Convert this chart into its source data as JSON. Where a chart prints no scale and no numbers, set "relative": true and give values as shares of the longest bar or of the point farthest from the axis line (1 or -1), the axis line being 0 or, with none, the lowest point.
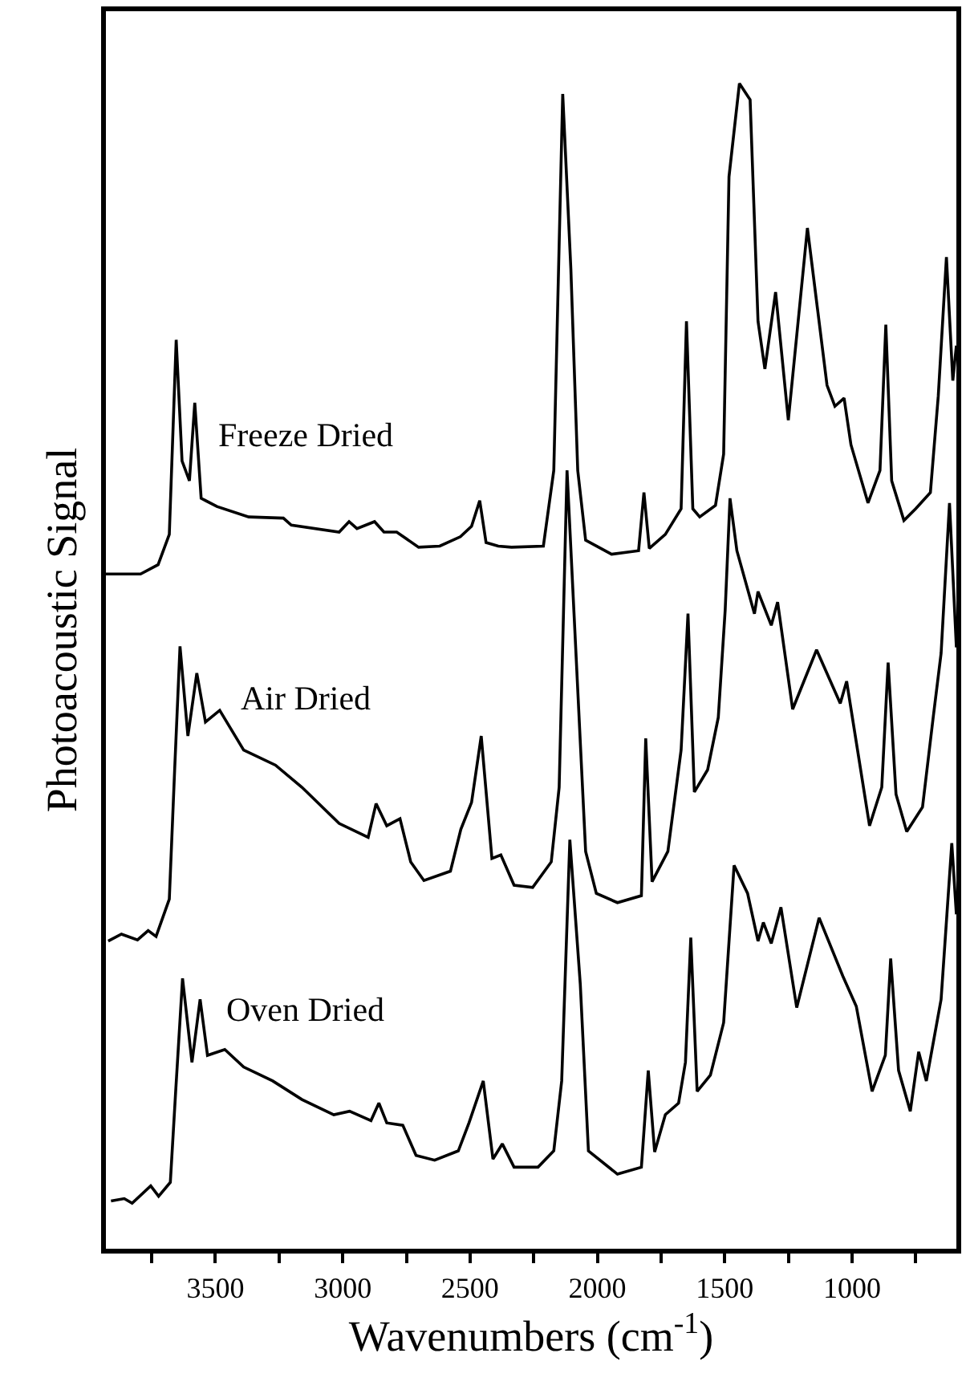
{
  "chart_data": {
    "type": "line",
    "relative": true,
    "xlabel": "Wavenumbers (cm$^{-1}$)",
    "ylabel": "Photoacoustic Signal",
    "xlim": [
      3930,
      590
    ],
    "xticks": [
      {
        "value": 3750,
        "label": null
      },
      3500,
      {
        "value": 3250,
        "label": null
      },
      3000,
      {
        "value": 2750,
        "label": null
      },
      2500,
      {
        "value": 2250,
        "label": null
      },
      2000,
      {
        "value": 1750,
        "label": null
      },
      1500,
      {
        "value": 1250,
        "label": null
      },
      1000,
      {
        "value": 750,
        "label": null
      }
    ],
    "legend": false,
    "marker": "none",
    "line_style": "solid",
    "tick_labels": "x",
    "series": [
      {
        "name": "Freeze Dried",
        "color": "#000000",
        "x": [
          3930,
          3794,
          3725,
          3681,
          3654,
          3631,
          3602,
          3581,
          3556,
          3494,
          3369,
          3233,
          3202,
          3014,
          2975,
          2944,
          2875,
          2838,
          2788,
          2702,
          2619,
          2538,
          2494,
          2462,
          2437,
          2389,
          2337,
          2212,
          2171,
          2136,
          2104,
          2077,
          2046,
          1944,
          1838,
          1817,
          1796,
          1733,
          1671,
          1650,
          1625,
          1598,
          1536,
          1504,
          1483,
          1442,
          1400,
          1369,
          1342,
          1300,
          1250,
          1175,
          1098,
          1067,
          1031,
          1004,
          937,
          890,
          867,
          844,
          796,
          750,
          692,
          661,
          629,
          604,
          590
        ],
        "values": [
          0.579,
          0.579,
          0.587,
          0.613,
          0.78,
          0.676,
          0.659,
          0.726,
          0.644,
          0.637,
          0.628,
          0.627,
          0.621,
          0.615,
          0.624,
          0.618,
          0.624,
          0.615,
          0.615,
          0.602,
          0.603,
          0.611,
          0.62,
          0.642,
          0.606,
          0.603,
          0.602,
          0.603,
          0.668,
          0.991,
          0.841,
          0.668,
          0.608,
          0.596,
          0.599,
          0.649,
          0.601,
          0.613,
          0.635,
          0.796,
          0.635,
          0.628,
          0.638,
          0.682,
          0.92,
          1.0,
          0.986,
          0.796,
          0.755,
          0.821,
          0.711,
          0.876,
          0.741,
          0.723,
          0.73,
          0.69,
          0.64,
          0.668,
          0.793,
          0.659,
          0.625,
          0.635,
          0.649,
          0.732,
          0.851,
          0.745,
          0.775
        ]
      },
      {
        "name": "Air Dried",
        "color": "#000000",
        "x": [
          3921,
          3869,
          3806,
          3764,
          3733,
          3681,
          3660,
          3639,
          3608,
          3573,
          3539,
          3483,
          3389,
          3264,
          3160,
          3014,
          2900,
          2869,
          2827,
          2775,
          2733,
          2681,
          2577,
          2536,
          2494,
          2456,
          2414,
          2379,
          2327,
          2254,
          2181,
          2150,
          2119,
          2046,
          2004,
          1921,
          1827,
          1810,
          1785,
          1723,
          1671,
          1644,
          1619,
          1567,
          1525,
          1498,
          1479,
          1452,
          1383,
          1369,
          1317,
          1292,
          1233,
          1139,
          1046,
          1021,
          931,
          883,
          858,
          827,
          785,
          723,
          681,
          650,
          617,
          590
        ],
        "values": [
          0.264,
          0.27,
          0.265,
          0.273,
          0.268,
          0.3,
          0.411,
          0.517,
          0.44,
          0.494,
          0.452,
          0.462,
          0.428,
          0.415,
          0.396,
          0.365,
          0.353,
          0.382,
          0.363,
          0.369,
          0.332,
          0.316,
          0.324,
          0.36,
          0.383,
          0.44,
          0.335,
          0.338,
          0.312,
          0.31,
          0.332,
          0.396,
          0.668,
          0.341,
          0.305,
          0.297,
          0.303,
          0.438,
          0.315,
          0.341,
          0.428,
          0.545,
          0.392,
          0.411,
          0.456,
          0.548,
          0.644,
          0.599,
          0.545,
          0.564,
          0.535,
          0.555,
          0.463,
          0.514,
          0.468,
          0.487,
          0.363,
          0.396,
          0.503,
          0.39,
          0.358,
          0.379,
          0.456,
          0.511,
          0.64,
          0.516
        ]
      },
      {
        "name": "Oven Dried",
        "color": "#000000",
        "x": [
          3910,
          3858,
          3827,
          3754,
          3723,
          3677,
          3656,
          3629,
          3592,
          3560,
          3531,
          3463,
          3389,
          3275,
          3160,
          3035,
          2973,
          2889,
          2858,
          2827,
          2764,
          2712,
          2639,
          2546,
          2504,
          2448,
          2410,
          2373,
          2327,
          2233,
          2171,
          2140,
          2108,
          2067,
          2035,
          1921,
          1827,
          1800,
          1775,
          1733,
          1681,
          1654,
          1633,
          1608,
          1556,
          1504,
          1463,
          1410,
          1369,
          1348,
          1317,
          1279,
          1217,
          1129,
          1036,
          983,
          921,
          869,
          848,
          817,
          771,
          738,
          708,
          650,
          608,
          590
        ],
        "values": [
          0.041,
          0.043,
          0.039,
          0.054,
          0.045,
          0.057,
          0.135,
          0.232,
          0.16,
          0.214,
          0.166,
          0.171,
          0.156,
          0.144,
          0.128,
          0.115,
          0.118,
          0.11,
          0.125,
          0.108,
          0.106,
          0.08,
          0.076,
          0.084,
          0.108,
          0.144,
          0.077,
          0.09,
          0.07,
          0.07,
          0.084,
          0.144,
          0.351,
          0.227,
          0.084,
          0.064,
          0.07,
          0.153,
          0.083,
          0.115,
          0.125,
          0.16,
          0.267,
          0.135,
          0.149,
          0.194,
          0.329,
          0.305,
          0.264,
          0.28,
          0.262,
          0.293,
          0.207,
          0.284,
          0.234,
          0.208,
          0.135,
          0.166,
          0.249,
          0.153,
          0.118,
          0.169,
          0.144,
          0.214,
          0.348,
          0.287
        ]
      }
    ]
  }
}
